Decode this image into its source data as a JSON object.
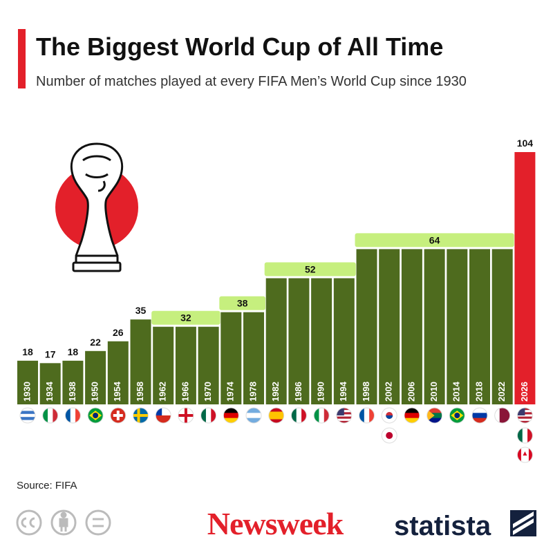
{
  "chart_data": {
    "type": "bar",
    "title": "The Biggest World Cup of All Time",
    "subtitle": "Number of matches played at every FIFA Men’s World Cup since 1930",
    "categories": [
      "1930",
      "1934",
      "1938",
      "1950",
      "1954",
      "1958",
      "1962",
      "1966",
      "1970",
      "1974",
      "1978",
      "1982",
      "1986",
      "1990",
      "1994",
      "1998",
      "2002",
      "2006",
      "2010",
      "2014",
      "2018",
      "2022",
      "2026"
    ],
    "values": [
      18,
      17,
      18,
      22,
      26,
      35,
      32,
      32,
      32,
      38,
      38,
      52,
      52,
      52,
      52,
      64,
      64,
      64,
      64,
      64,
      64,
      64,
      104
    ],
    "colors": [
      "#4e6b1e",
      "#4e6b1e",
      "#4e6b1e",
      "#4e6b1e",
      "#4e6b1e",
      "#4e6b1e",
      "#4e6b1e",
      "#4e6b1e",
      "#4e6b1e",
      "#4e6b1e",
      "#4e6b1e",
      "#4e6b1e",
      "#4e6b1e",
      "#4e6b1e",
      "#4e6b1e",
      "#4e6b1e",
      "#4e6b1e",
      "#4e6b1e",
      "#4e6b1e",
      "#4e6b1e",
      "#4e6b1e",
      "#4e6b1e",
      "#e3202a"
    ],
    "label_highlight_color": "#c6ef7e",
    "ylim": [
      0,
      104
    ]
  },
  "footer": {
    "source": "Source: FIFA",
    "logos": [
      "Newsweek",
      "statista"
    ]
  }
}
